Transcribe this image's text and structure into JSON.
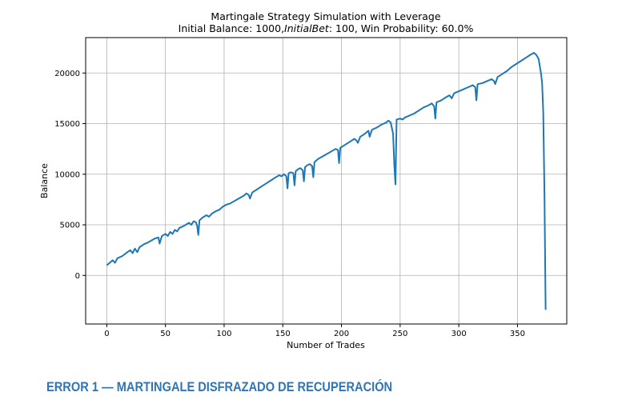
{
  "chart_data": {
    "type": "line",
    "title": "Martingale Strategy Simulation with Leverage",
    "subtitle_plain": "Initial Balance: 1000,",
    "subtitle_italic": "InitialBet",
    "subtitle_rest": ": 100, Win Probability: 60.0%",
    "xlabel": "Number of Trades",
    "ylabel": "Balance",
    "xlim": [
      -18,
      392
    ],
    "ylim": [
      -4800,
      23500
    ],
    "xticks": [
      0,
      50,
      100,
      150,
      200,
      250,
      300,
      350
    ],
    "yticks": [
      0,
      5000,
      10000,
      15000,
      20000
    ],
    "grid": true,
    "color": "#1f77b4",
    "series": [
      {
        "points": [
          [
            0,
            1000
          ],
          [
            3,
            1300
          ],
          [
            5,
            1500
          ],
          [
            7,
            1250
          ],
          [
            9,
            1700
          ],
          [
            13,
            1900
          ],
          [
            17,
            2250
          ],
          [
            20,
            2500
          ],
          [
            22,
            2200
          ],
          [
            24,
            2650
          ],
          [
            26,
            2300
          ],
          [
            28,
            2800
          ],
          [
            32,
            3100
          ],
          [
            35,
            3250
          ],
          [
            38,
            3450
          ],
          [
            41,
            3650
          ],
          [
            44,
            3750
          ],
          [
            45,
            3150
          ],
          [
            47,
            3900
          ],
          [
            50,
            4100
          ],
          [
            52,
            3900
          ],
          [
            54,
            4300
          ],
          [
            56,
            4100
          ],
          [
            58,
            4500
          ],
          [
            60,
            4350
          ],
          [
            62,
            4700
          ],
          [
            65,
            4850
          ],
          [
            68,
            5050
          ],
          [
            70,
            5200
          ],
          [
            72,
            5000
          ],
          [
            74,
            5350
          ],
          [
            76,
            5250
          ],
          [
            77,
            4900
          ],
          [
            78,
            4000
          ],
          [
            79,
            5450
          ],
          [
            82,
            5750
          ],
          [
            85,
            5950
          ],
          [
            87,
            5800
          ],
          [
            90,
            6150
          ],
          [
            93,
            6350
          ],
          [
            96,
            6500
          ],
          [
            99,
            6800
          ],
          [
            102,
            7000
          ],
          [
            105,
            7100
          ],
          [
            108,
            7300
          ],
          [
            111,
            7500
          ],
          [
            114,
            7700
          ],
          [
            117,
            7900
          ],
          [
            119,
            8100
          ],
          [
            121,
            7950
          ],
          [
            122,
            7600
          ],
          [
            124,
            8200
          ],
          [
            128,
            8500
          ],
          [
            132,
            8800
          ],
          [
            136,
            9100
          ],
          [
            140,
            9400
          ],
          [
            144,
            9700
          ],
          [
            147,
            9900
          ],
          [
            149,
            9800
          ],
          [
            151,
            10000
          ],
          [
            153,
            9800
          ],
          [
            154,
            8600
          ],
          [
            155,
            10100
          ],
          [
            157,
            10200
          ],
          [
            159,
            10100
          ],
          [
            160,
            8900
          ],
          [
            161,
            10300
          ],
          [
            163,
            10500
          ],
          [
            165,
            10600
          ],
          [
            167,
            10400
          ],
          [
            168,
            9300
          ],
          [
            169,
            10700
          ],
          [
            171,
            10900
          ],
          [
            173,
            11000
          ],
          [
            175,
            10800
          ],
          [
            176,
            9700
          ],
          [
            177,
            11200
          ],
          [
            180,
            11500
          ],
          [
            183,
            11700
          ],
          [
            186,
            11900
          ],
          [
            189,
            12100
          ],
          [
            192,
            12300
          ],
          [
            195,
            12500
          ],
          [
            197,
            12400
          ],
          [
            198,
            11100
          ],
          [
            199,
            12600
          ],
          [
            203,
            12900
          ],
          [
            207,
            13200
          ],
          [
            211,
            13500
          ],
          [
            213,
            13300
          ],
          [
            214,
            13100
          ],
          [
            216,
            13700
          ],
          [
            220,
            14000
          ],
          [
            223,
            14300
          ],
          [
            224,
            13700
          ],
          [
            226,
            14400
          ],
          [
            230,
            14600
          ],
          [
            234,
            14900
          ],
          [
            238,
            15100
          ],
          [
            240,
            15300
          ],
          [
            242,
            15100
          ],
          [
            244,
            14000
          ],
          [
            245,
            11000
          ],
          [
            246,
            9000
          ],
          [
            247,
            15400
          ],
          [
            250,
            15500
          ],
          [
            252,
            15400
          ],
          [
            254,
            15600
          ],
          [
            258,
            15800
          ],
          [
            262,
            16000
          ],
          [
            266,
            16300
          ],
          [
            270,
            16600
          ],
          [
            274,
            16800
          ],
          [
            277,
            17000
          ],
          [
            279,
            16700
          ],
          [
            280,
            15500
          ],
          [
            281,
            17100
          ],
          [
            285,
            17300
          ],
          [
            289,
            17600
          ],
          [
            292,
            17800
          ],
          [
            294,
            17500
          ],
          [
            296,
            18000
          ],
          [
            300,
            18200
          ],
          [
            304,
            18400
          ],
          [
            308,
            18600
          ],
          [
            312,
            18800
          ],
          [
            314,
            18600
          ],
          [
            315,
            17300
          ],
          [
            316,
            18900
          ],
          [
            320,
            19000
          ],
          [
            324,
            19200
          ],
          [
            328,
            19400
          ],
          [
            330,
            19200
          ],
          [
            331,
            18900
          ],
          [
            333,
            19600
          ],
          [
            337,
            19900
          ],
          [
            341,
            20200
          ],
          [
            345,
            20600
          ],
          [
            349,
            20900
          ],
          [
            353,
            21200
          ],
          [
            357,
            21500
          ],
          [
            361,
            21800
          ],
          [
            364,
            22000
          ],
          [
            366,
            21800
          ],
          [
            368,
            21400
          ],
          [
            370,
            20000
          ],
          [
            371,
            19000
          ],
          [
            372,
            16000
          ],
          [
            373,
            8000
          ],
          [
            374,
            -3400
          ]
        ]
      }
    ]
  },
  "caption": "ERROR 1 — MARTINGALE DISFRAZADO DE RECUPERACIÓN"
}
